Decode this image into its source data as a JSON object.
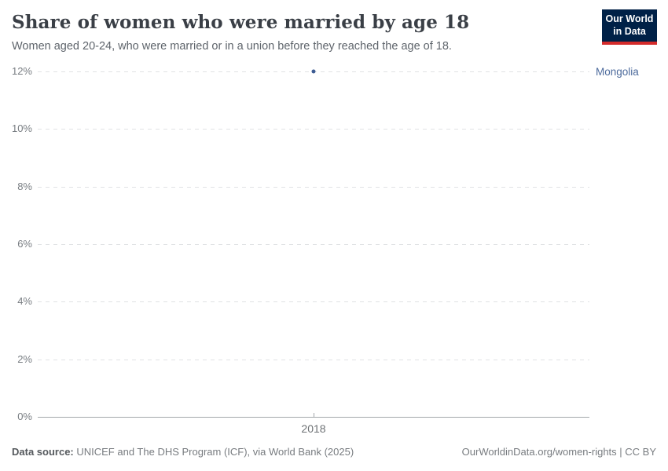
{
  "header": {
    "title": "Share of women who were married by age 18",
    "subtitle": "Women aged 20-24, who were married or in a union before they reached the age of 18.",
    "logo": {
      "line1": "Our World",
      "line2": "in Data",
      "bg_color": "#002147",
      "accent_color": "#d42b2b"
    }
  },
  "chart_data": {
    "type": "scatter",
    "title": "Share of women who were married by age 18",
    "subtitle": "Women aged 20-24, who were married or in a union before they reached the age of 18.",
    "series": [
      {
        "name": "Mongolia",
        "color": "#3d5c93",
        "points": [
          {
            "x": 2018,
            "y": 12
          }
        ]
      }
    ],
    "x_ticks": [
      "2018"
    ],
    "y_ticks": [
      0,
      2,
      4,
      6,
      8,
      10,
      12
    ],
    "y_tick_suffix": "%",
    "ylim": [
      0,
      12
    ],
    "xlabel": "",
    "ylabel": "",
    "grid": "horizontal-dashed",
    "legend_position": "right-of-plot",
    "entity_label": "Mongolia",
    "entity_label_color": "#4c6a9c"
  },
  "footer": {
    "source_label": "Data source:",
    "source_text": " UNICEF and The DHS Program (ICF), via World Bank (2025)",
    "attribution": "OurWorldinData.org/women-rights | CC BY"
  }
}
